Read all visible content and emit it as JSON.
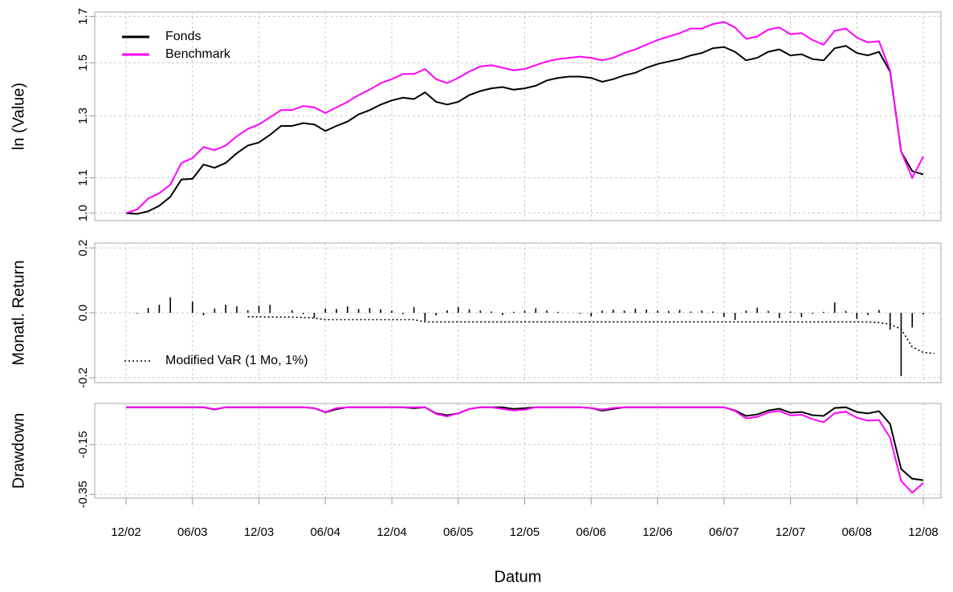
{
  "chart_data": [
    {
      "type": "line",
      "ylabel": "ln (Value)",
      "log_y": true,
      "grid": true,
      "legend": "upper left",
      "ylim": [
        0.98,
        1.72
      ],
      "yticks": [
        {
          "value": 1.0,
          "label": "1.0"
        },
        1.1,
        1.3,
        1.5,
        1.7
      ],
      "series": [
        {
          "name": "Fonds",
          "color": "#000000",
          "values": [
            1.0,
            0.998,
            1.005,
            1.02,
            1.045,
            1.095,
            1.097,
            1.14,
            1.13,
            1.145,
            1.175,
            1.2,
            1.21,
            1.235,
            1.265,
            1.265,
            1.275,
            1.27,
            1.248,
            1.265,
            1.28,
            1.305,
            1.32,
            1.34,
            1.355,
            1.365,
            1.36,
            1.385,
            1.35,
            1.34,
            1.35,
            1.375,
            1.39,
            1.4,
            1.405,
            1.395,
            1.4,
            1.41,
            1.43,
            1.44,
            1.445,
            1.445,
            1.44,
            1.425,
            1.435,
            1.45,
            1.46,
            1.48,
            1.495,
            1.505,
            1.515,
            1.53,
            1.54,
            1.56,
            1.565,
            1.545,
            1.51,
            1.52,
            1.545,
            1.555,
            1.53,
            1.535,
            1.515,
            1.51,
            1.56,
            1.57,
            1.54,
            1.53,
            1.545,
            1.465,
            1.18,
            1.12,
            1.11
          ]
        },
        {
          "name": "Benchmark",
          "color": "#ff00ff",
          "values": [
            1.0,
            1.01,
            1.04,
            1.055,
            1.08,
            1.145,
            1.16,
            1.195,
            1.185,
            1.2,
            1.23,
            1.255,
            1.27,
            1.295,
            1.32,
            1.32,
            1.335,
            1.33,
            1.31,
            1.33,
            1.35,
            1.375,
            1.395,
            1.42,
            1.435,
            1.455,
            1.455,
            1.475,
            1.435,
            1.42,
            1.44,
            1.465,
            1.485,
            1.49,
            1.48,
            1.47,
            1.475,
            1.49,
            1.505,
            1.515,
            1.52,
            1.525,
            1.52,
            1.51,
            1.52,
            1.54,
            1.555,
            1.575,
            1.595,
            1.61,
            1.625,
            1.645,
            1.645,
            1.665,
            1.675,
            1.65,
            1.6,
            1.61,
            1.64,
            1.65,
            1.62,
            1.625,
            1.595,
            1.575,
            1.635,
            1.645,
            1.605,
            1.585,
            1.59,
            1.47,
            1.18,
            1.1,
            1.165
          ]
        }
      ]
    },
    {
      "type": "bar",
      "ylabel": "Monatl. Return",
      "grid": true,
      "legend": "lower left",
      "color": "#000000",
      "ylim": [
        -0.215,
        0.215
      ],
      "yticks": [
        -0.2,
        {
          "value": 0,
          "label": "0.0"
        },
        0.2
      ],
      "values": [
        0,
        -0.002,
        0.015,
        0.025,
        0.048,
        0.0,
        0.035,
        -0.008,
        0.013,
        0.025,
        0.02,
        0.008,
        0.022,
        0.025,
        0.0,
        0.008,
        -0.004,
        -0.016,
        0.013,
        0.012,
        0.02,
        0.012,
        0.015,
        0.011,
        0.007,
        -0.004,
        0.018,
        -0.025,
        -0.008,
        0.008,
        0.018,
        0.011,
        0.007,
        0.004,
        -0.007,
        0.003,
        0.007,
        0.014,
        0.007,
        0.003,
        0.0,
        -0.003,
        -0.011,
        0.007,
        0.01,
        0.007,
        0.013,
        0.01,
        0.007,
        0.006,
        0.009,
        0.004,
        0.007,
        0.004,
        -0.013,
        -0.022,
        0.007,
        0.016,
        0.006,
        -0.016,
        0.004,
        -0.013,
        -0.003,
        0.003,
        0.032,
        0.006,
        -0.019,
        -0.007,
        0.009,
        -0.052,
        -0.195,
        -0.045,
        -0.005
      ],
      "series": [
        {
          "name": "Modified VaR (1 Mo, 1%)",
          "color": "#000000",
          "style": "dotted",
          "values": [
            null,
            null,
            null,
            null,
            null,
            null,
            null,
            null,
            null,
            null,
            null,
            -0.012,
            -0.012,
            -0.013,
            -0.013,
            -0.013,
            -0.014,
            -0.016,
            -0.021,
            -0.021,
            -0.021,
            -0.021,
            -0.021,
            -0.021,
            -0.021,
            -0.021,
            -0.021,
            -0.028,
            -0.028,
            -0.028,
            -0.028,
            -0.028,
            -0.028,
            -0.028,
            -0.028,
            -0.028,
            -0.028,
            -0.028,
            -0.028,
            -0.028,
            -0.028,
            -0.028,
            -0.028,
            -0.028,
            -0.028,
            -0.028,
            -0.028,
            -0.028,
            -0.028,
            -0.028,
            -0.028,
            -0.028,
            -0.028,
            -0.028,
            -0.028,
            -0.028,
            -0.028,
            -0.028,
            -0.028,
            -0.028,
            -0.028,
            -0.028,
            -0.028,
            -0.028,
            -0.028,
            -0.028,
            -0.028,
            -0.028,
            -0.03,
            -0.035,
            -0.05,
            -0.105,
            -0.122,
            -0.125
          ]
        }
      ]
    },
    {
      "type": "line",
      "ylabel": "Drawdown",
      "xlabel": "Datum",
      "grid": true,
      "ylim": [
        -0.365,
        0.015
      ],
      "yticks": [
        -0.15,
        -0.35
      ],
      "categories": [
        "12/02",
        null,
        null,
        null,
        null,
        null,
        "06/03",
        null,
        null,
        null,
        null,
        null,
        "12/03",
        null,
        null,
        null,
        null,
        null,
        "06/04",
        null,
        null,
        null,
        null,
        null,
        "12/04",
        null,
        null,
        null,
        null,
        null,
        "06/05",
        null,
        null,
        null,
        null,
        null,
        "12/05",
        null,
        null,
        null,
        null,
        null,
        "06/06",
        null,
        null,
        null,
        null,
        null,
        "12/06",
        null,
        null,
        null,
        null,
        null,
        "06/07",
        null,
        null,
        null,
        null,
        null,
        "12/07",
        null,
        null,
        null,
        null,
        null,
        "06/08",
        null,
        null,
        null,
        null,
        null,
        "12/08"
      ],
      "series": [
        {
          "name": "Fonds",
          "color": "#000000",
          "values": [
            0,
            0,
            0,
            0,
            0,
            0,
            0,
            0,
            -0.009,
            0,
            0,
            0,
            0,
            0,
            0,
            0,
            0,
            -0.004,
            -0.02,
            -0.008,
            0,
            0,
            0,
            0,
            0,
            0,
            -0.004,
            0,
            -0.025,
            -0.032,
            -0.025,
            -0.007,
            0,
            0,
            0,
            -0.007,
            -0.004,
            0,
            0,
            0,
            0,
            0,
            -0.003,
            -0.014,
            -0.007,
            0,
            0,
            0,
            0,
            0,
            0,
            0,
            0,
            0,
            0,
            -0.013,
            -0.035,
            -0.029,
            -0.013,
            -0.006,
            -0.022,
            -0.019,
            -0.032,
            -0.035,
            -0.003,
            0,
            -0.019,
            -0.025,
            -0.016,
            -0.067,
            -0.248,
            -0.287,
            -0.293
          ]
        },
        {
          "name": "Benchmark",
          "color": "#ff00ff",
          "values": [
            0,
            0,
            0,
            0,
            0,
            0,
            0,
            0,
            -0.008,
            0,
            0,
            0,
            0,
            0,
            0,
            0,
            0,
            -0.004,
            -0.019,
            -0.004,
            0,
            0,
            0,
            0,
            0,
            0,
            0,
            0,
            -0.027,
            -0.037,
            -0.024,
            -0.007,
            0,
            0,
            -0.007,
            -0.013,
            -0.01,
            0,
            0,
            0,
            0,
            0,
            -0.003,
            -0.01,
            -0.003,
            0,
            0,
            0,
            0,
            0,
            0,
            0,
            0,
            0,
            0,
            -0.015,
            -0.045,
            -0.039,
            -0.021,
            -0.015,
            -0.033,
            -0.03,
            -0.048,
            -0.06,
            -0.024,
            -0.018,
            -0.042,
            -0.054,
            -0.051,
            -0.122,
            -0.296,
            -0.343,
            -0.304
          ]
        }
      ]
    }
  ]
}
